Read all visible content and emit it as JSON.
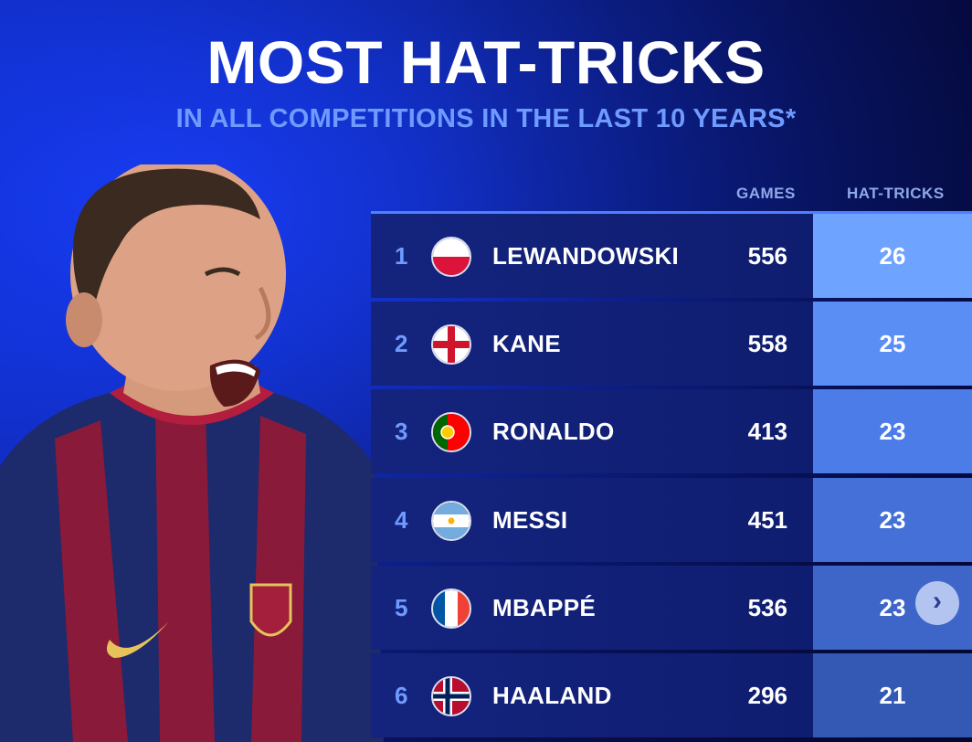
{
  "header": {
    "title": "MOST HAT-TRICKS",
    "subtitle": "IN ALL COMPETITIONS IN THE LAST 10 YEARS*"
  },
  "columns": {
    "games": "GAMES",
    "hat_tricks": "HAT-TRICKS"
  },
  "rows": [
    {
      "rank": "1",
      "flag": "poland-flag-icon",
      "name": "LEWANDOWSKI",
      "games": "556",
      "hat_tricks": "26"
    },
    {
      "rank": "2",
      "flag": "england-flag-icon",
      "name": "KANE",
      "games": "558",
      "hat_tricks": "25"
    },
    {
      "rank": "3",
      "flag": "portugal-flag-icon",
      "name": "RONALDO",
      "games": "413",
      "hat_tricks": "23"
    },
    {
      "rank": "4",
      "flag": "argentina-flag-icon",
      "name": "MESSI",
      "games": "451",
      "hat_tricks": "23"
    },
    {
      "rank": "5",
      "flag": "france-flag-icon",
      "name": "MBAPPÉ",
      "games": "536",
      "hat_tricks": "23"
    },
    {
      "rank": "6",
      "flag": "norway-flag-icon",
      "name": "HAALAND",
      "games": "296",
      "hat_tricks": "21"
    }
  ],
  "hat_cell_colors": [
    "#6ea3ff",
    "#5b8ef5",
    "#4c7ce8",
    "#4470d8",
    "#3d66c8",
    "#3459b5"
  ],
  "next_button": {
    "icon": "chevron-right-icon",
    "glyph": "›"
  },
  "colors": {
    "accent": "#6f9bff",
    "row_background": "#14247e",
    "background": "#0c1f8a"
  }
}
